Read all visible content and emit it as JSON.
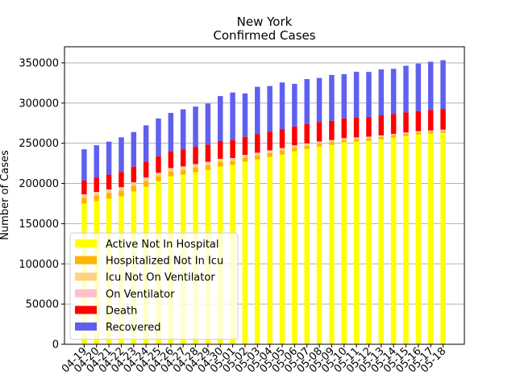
{
  "chart_data": {
    "type": "bar",
    "stacked": true,
    "title": "New York",
    "subtitle": "Confirmed Cases",
    "xlabel": "",
    "ylabel": "Number of Cases",
    "ylim": [
      0,
      370000
    ],
    "yticks": [
      0,
      50000,
      100000,
      150000,
      200000,
      250000,
      300000,
      350000
    ],
    "grid": "horizontal",
    "legend_position": "lower-left",
    "categories": [
      "04-19",
      "04-20",
      "04-21",
      "04-22",
      "04-23",
      "04-24",
      "04-25",
      "04-26",
      "04-27",
      "04-28",
      "04-29",
      "04-30",
      "05-01",
      "05-02",
      "05-03",
      "05-04",
      "05-05",
      "05-06",
      "05-07",
      "05-08",
      "05-09",
      "05-10",
      "05-11",
      "05-12",
      "05-13",
      "05-14",
      "05-15",
      "05-16",
      "05-17",
      "05-18"
    ],
    "series": [
      {
        "name": "Active Not In Hospital",
        "color": "#ffff00",
        "values": [
          175000,
          178000,
          181000,
          184000,
          190000,
          196000,
          203000,
          209000,
          211000,
          214000,
          217000,
          221000,
          223000,
          227000,
          230000,
          233000,
          236000,
          240000,
          243000,
          246000,
          248000,
          251000,
          252000,
          253000,
          255000,
          257000,
          259000,
          261000,
          262000,
          263000
        ]
      },
      {
        "name": "Hospitalized Not In Icu",
        "color": "#ffb300",
        "values": [
          7000,
          7000,
          7000,
          7000,
          7000,
          7000,
          6000,
          6000,
          6000,
          6000,
          6000,
          6000,
          5000,
          5000,
          5000,
          5000,
          5000,
          4500,
          4000,
          3500,
          3500,
          3000,
          3000,
          3000,
          2800,
          2700,
          2600,
          2500,
          2400,
          2300
        ]
      },
      {
        "name": "Icu Not On Ventilator",
        "color": "#ffd27f",
        "values": [
          3000,
          3000,
          3000,
          3000,
          3000,
          3000,
          3000,
          3000,
          3000,
          3000,
          2800,
          2700,
          2600,
          2500,
          2400,
          2300,
          2200,
          2100,
          2000,
          1900,
          1800,
          1700,
          1600,
          1500,
          1400,
          1300,
          1200,
          1100,
          1000,
          1000
        ]
      },
      {
        "name": "On Ventilator",
        "color": "#ffc0cb",
        "values": [
          1500,
          1500,
          1500,
          1400,
          1400,
          1300,
          1300,
          1200,
          1200,
          1100,
          1100,
          1000,
          1000,
          1000,
          900,
          900,
          900,
          800,
          800,
          800,
          700,
          700,
          700,
          700,
          600,
          600,
          600,
          500,
          500,
          500
        ]
      },
      {
        "name": "Death",
        "color": "#ff0000",
        "values": [
          17000,
          18000,
          18500,
          19000,
          19500,
          20000,
          20500,
          20500,
          21000,
          21500,
          21500,
          22000,
          22500,
          22500,
          23000,
          23000,
          23500,
          23500,
          24000,
          24000,
          24000,
          24500,
          24500,
          24500,
          25000,
          25000,
          25000,
          25000,
          25500,
          25500
        ]
      },
      {
        "name": "Recovered",
        "color": "#6060f0",
        "values": [
          39000,
          40000,
          41000,
          43000,
          43000,
          45000,
          47000,
          48000,
          50000,
          50000,
          51000,
          56000,
          59000,
          54000,
          59000,
          57000,
          58000,
          53000,
          56000,
          55000,
          57000,
          55000,
          57000,
          56000,
          57000,
          56000,
          58000,
          59000,
          60000,
          61000
        ]
      }
    ]
  }
}
